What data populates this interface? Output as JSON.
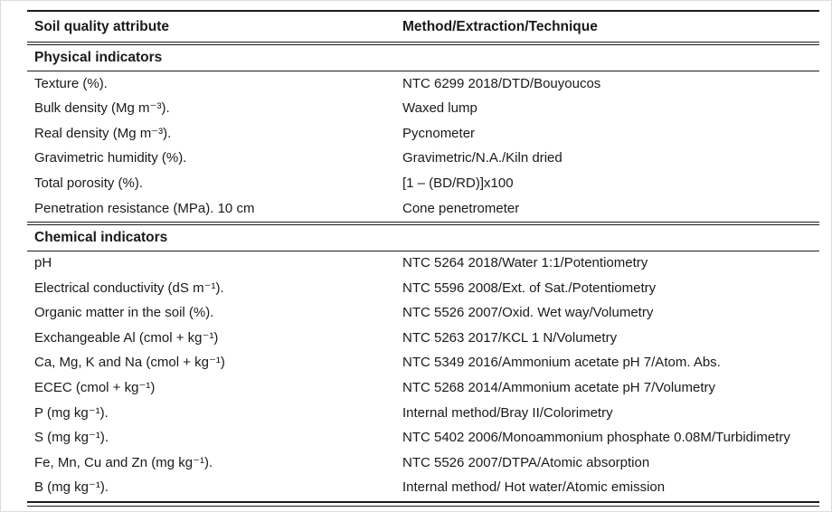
{
  "table": {
    "headers": [
      "Soil quality attribute",
      "Method/Extraction/Technique"
    ],
    "sections": [
      {
        "title": "Physical indicators",
        "rows": [
          [
            "Texture (%).",
            "NTC 6299 2018/DTD/Bouyoucos"
          ],
          [
            "Bulk density (Mg m⁻³).",
            "Waxed lump"
          ],
          [
            "Real density (Mg m⁻³).",
            "Pycnometer"
          ],
          [
            "Gravimetric humidity (%).",
            "Gravimetric/N.A./Kiln dried"
          ],
          [
            "Total porosity (%).",
            "[1 – (BD/RD)]x100"
          ],
          [
            "Penetration resistance (MPa). 10 cm",
            "Cone penetrometer"
          ]
        ]
      },
      {
        "title": "Chemical indicators",
        "rows": [
          [
            "pH",
            "NTC 5264 2018/Water 1:1/Potentiometry"
          ],
          [
            "Electrical conductivity (dS m⁻¹).",
            "NTC 5596 2008/Ext. of Sat./Potentiometry"
          ],
          [
            "Organic matter in the soil (%).",
            "NTC 5526 2007/Oxid. Wet way/Volumetry"
          ],
          [
            "Exchangeable Al (cmol + kg⁻¹)",
            "NTC 5263 2017/KCL 1 N/Volumetry"
          ],
          [
            "Ca, Mg, K and Na (cmol + kg⁻¹)",
            "NTC 5349 2016/Ammonium acetate pH 7/Atom. Abs."
          ],
          [
            "ECEC (cmol + kg⁻¹)",
            "NTC 5268 2014/Ammonium acetate pH 7/Volumetry"
          ],
          [
            "P (mg kg⁻¹).",
            "Internal method/Bray II/Colorimetry"
          ],
          [
            "S (mg kg⁻¹).",
            "NTC 5402 2006/Monoammonium phosphate 0.08M/Turbidimetry"
          ],
          [
            "Fe, Mn, Cu and Zn (mg kg⁻¹).",
            "NTC 5526 2007/DTPA/Atomic absorption"
          ],
          [
            "B (mg kg⁻¹).",
            "Internal method/ Hot water/Atomic emission"
          ]
        ]
      }
    ]
  }
}
